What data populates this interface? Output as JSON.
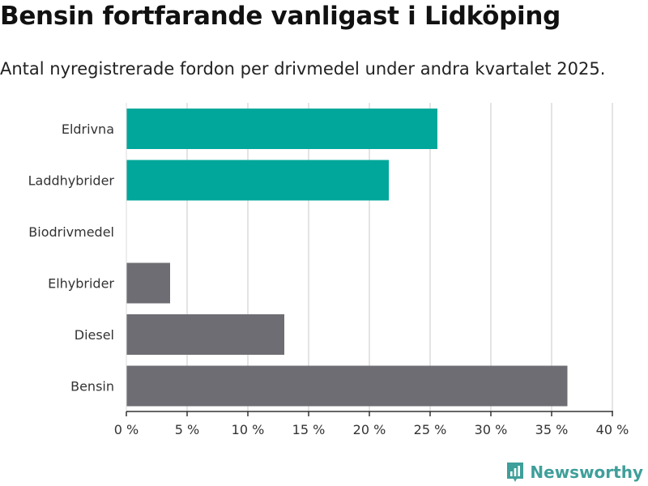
{
  "title": "Bensin fortfarande vanligast i Lidköping",
  "subtitle": "Antal nyregistrerade fordon per drivmedel under andra kvartalet 2025.",
  "brand": {
    "name": "Newsworthy",
    "icon": "newsworthy-logo-icon"
  },
  "colors": {
    "highlight": "#00a79a",
    "default": "#6e6d73",
    "grid": "#dcdcdc",
    "axis": "#333333"
  },
  "chart_data": {
    "type": "bar",
    "orientation": "horizontal",
    "categories": [
      "Eldrivna",
      "Laddhybrider",
      "Biodrivmedel",
      "Elhybrider",
      "Diesel",
      "Bensin"
    ],
    "values": [
      25.6,
      21.6,
      0,
      3.6,
      13.0,
      36.3
    ],
    "highlighted": [
      true,
      true,
      false,
      false,
      false,
      false
    ],
    "xlim": [
      0,
      40
    ],
    "xticks": [
      0,
      5,
      10,
      15,
      20,
      25,
      30,
      35,
      40
    ],
    "xtick_suffix": " %",
    "grid": true
  }
}
